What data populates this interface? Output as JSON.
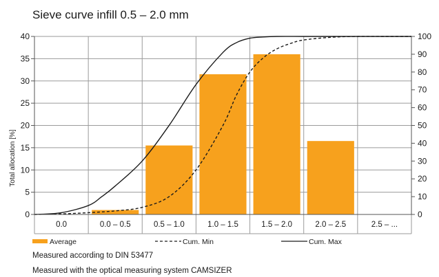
{
  "chart_data": {
    "type": "bar",
    "title": "Sieve curve infill 0.5 – 2.0 mm",
    "ylabel": "Total allocation [%]",
    "y2label": "",
    "categories": [
      "0.0",
      "0.0 – 0.5",
      "0.5 – 1.0",
      "1.0 – 1.5",
      "1.5 – 2.0",
      "2.0 – 2.5",
      "2.5 – ..."
    ],
    "ylim": [
      0,
      40
    ],
    "y2lim": [
      0,
      100
    ],
    "yticks": [
      "0",
      "5",
      "10",
      "15",
      "20",
      "25",
      "30",
      "35",
      "40"
    ],
    "y2ticks": [
      "0",
      "10",
      "20",
      "30",
      "40",
      "50",
      "60",
      "70",
      "80",
      "90",
      "100"
    ],
    "grid": true,
    "series": [
      {
        "name": "Average",
        "kind": "bar",
        "axis": "left",
        "color": "#f7a11d",
        "values": [
          0,
          1,
          15.5,
          31.5,
          36,
          16.5,
          0
        ]
      },
      {
        "name": "Cum. Min",
        "kind": "line",
        "style": "dashed",
        "axis": "right",
        "color": "#1a1a1a",
        "x": [
          0,
          0.5,
          1,
          1.5,
          2,
          2.5,
          3,
          3.5,
          3.75,
          4,
          4.25,
          4.5,
          4.75,
          5,
          5.5,
          6,
          6.5,
          7
        ],
        "y": [
          0,
          0.3,
          1,
          2,
          4,
          10,
          25,
          50,
          67,
          80,
          88,
          93,
          96,
          98,
          99.5,
          100,
          100,
          100
        ]
      },
      {
        "name": "Cum. Max",
        "kind": "line",
        "style": "solid",
        "axis": "right",
        "color": "#1a1a1a",
        "x": [
          0,
          0.5,
          1,
          1.25,
          1.5,
          2,
          2.5,
          3,
          3.5,
          3.75,
          4,
          4.25,
          4.5,
          5,
          5.5,
          6,
          6.5,
          7
        ],
        "y": [
          0,
          1,
          5,
          10,
          16,
          30,
          50,
          73,
          91,
          96.5,
          99,
          99.7,
          100,
          100,
          100,
          100,
          100,
          100
        ]
      }
    ],
    "legend": {
      "placement": "bottom",
      "items": [
        {
          "label": "Average",
          "kind": "bar"
        },
        {
          "label": "Cum. Min",
          "kind": "dashed"
        },
        {
          "label": "Cum. Max",
          "kind": "solid"
        }
      ]
    }
  },
  "notes": [
    "Measured according to DIN 53477",
    "Measured with the optical measuring system  CAMSIZER"
  ]
}
